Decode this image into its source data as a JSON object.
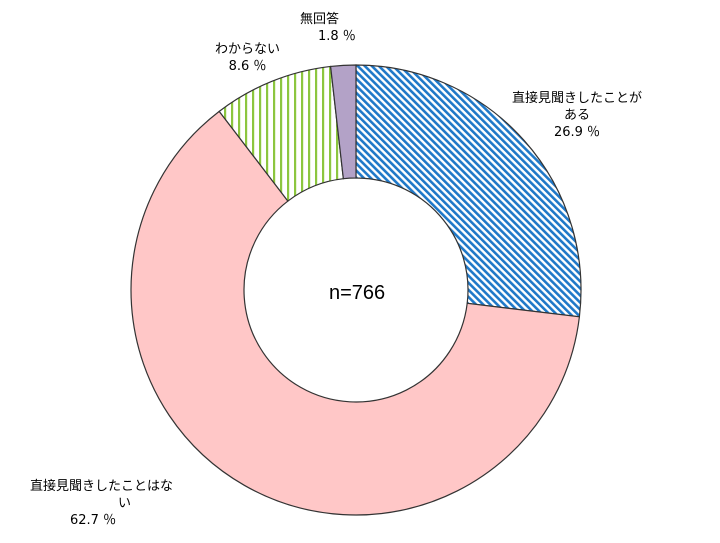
{
  "chart_data": {
    "type": "pie",
    "style": "donut",
    "center_label": "n=766",
    "start_angle": "12 o'clock",
    "direction": "clockwise",
    "slices": [
      {
        "label": "直接見聞きしたことがある",
        "label_lines": [
          "直接見聞きしたことが",
          "ある"
        ],
        "value": 26.9,
        "value_text": "26.9 ％",
        "fill": "#1f78c8",
        "pattern": "diagonal-stripes"
      },
      {
        "label": "直接見聞きしたことはない",
        "label_lines": [
          "直接見聞きしたことはな",
          "い"
        ],
        "value": 62.7,
        "value_text": "62.7 ％",
        "fill": "#ffc7c7",
        "pattern": "solid"
      },
      {
        "label": "わからない",
        "label_lines": [
          "わからない"
        ],
        "value": 8.6,
        "value_text": "8.6 ％",
        "fill": "#8cc63f",
        "pattern": "vertical-stripes"
      },
      {
        "label": "無回答",
        "label_lines": [
          "無回答"
        ],
        "value": 1.8,
        "value_text": "1.8 ％",
        "fill": "#b3a2c7",
        "pattern": "solid"
      }
    ],
    "colors": {
      "outline": "#333333",
      "stripe_background": "#ffffff"
    }
  }
}
